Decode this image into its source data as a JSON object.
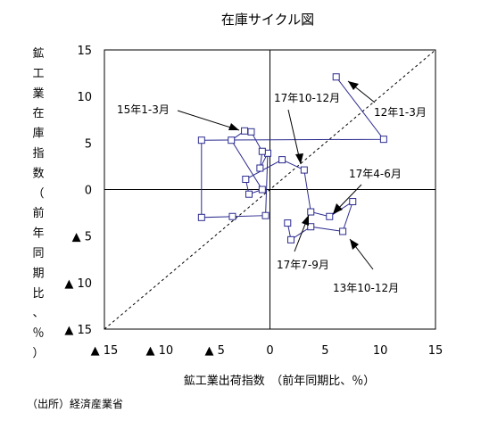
{
  "chart_data": {
    "type": "scatter",
    "title": "在庫サイクル図",
    "xlabel": "鉱工業出荷指数　（前年同期比、％）",
    "ylabel": "鉱工業在庫指数（前年同期比、％）",
    "xlim": [
      -15,
      15
    ],
    "ylim": [
      -15,
      15
    ],
    "x_ticks": [
      -15,
      -10,
      -5,
      0,
      5,
      10,
      15
    ],
    "x_tick_labels": [
      "▲ 15",
      "▲ 10",
      "▲ 5",
      "0",
      "5",
      "10",
      "15"
    ],
    "y_ticks": [
      15,
      10,
      5,
      0,
      -5,
      -10,
      -15
    ],
    "y_tick_labels": [
      "15",
      "10",
      "5",
      "0",
      "▲ 5",
      "▲ 10",
      "▲ 15"
    ],
    "grid": false,
    "reference_line": "45-degree dashed diagonal",
    "series": [
      {
        "points": [
          {
            "x": 6.0,
            "y": 12.1
          },
          {
            "x": 10.3,
            "y": 5.4
          },
          {
            "x": -6.2,
            "y": 5.3
          },
          {
            "x": -6.2,
            "y": -3.0
          },
          {
            "x": -3.4,
            "y": -2.9
          },
          {
            "x": -0.4,
            "y": -2.8
          },
          {
            "x": -0.2,
            "y": 3.9
          },
          {
            "x": -0.9,
            "y": 2.3
          },
          {
            "x": -0.7,
            "y": 4.1
          },
          {
            "x": -1.7,
            "y": 6.2
          },
          {
            "x": -2.3,
            "y": 6.3
          },
          {
            "x": -3.5,
            "y": 5.3
          },
          {
            "x": -0.7,
            "y": 0.0
          },
          {
            "x": -1.9,
            "y": -0.5
          },
          {
            "x": -2.2,
            "y": 1.1
          },
          {
            "x": 1.1,
            "y": 3.2
          },
          {
            "x": 3.1,
            "y": 2.1
          },
          {
            "x": 3.7,
            "y": -2.4
          },
          {
            "x": 5.4,
            "y": -2.9
          },
          {
            "x": 7.5,
            "y": -1.3
          },
          {
            "x": 6.6,
            "y": -4.5
          },
          {
            "x": 3.7,
            "y": -4.0
          },
          {
            "x": 1.9,
            "y": -5.4
          },
          {
            "x": 1.6,
            "y": -3.6
          }
        ]
      }
    ],
    "annotations": [
      {
        "text": "12年1-3月",
        "point_index": 0
      },
      {
        "text": "15年1-3月",
        "point_index": 9
      },
      {
        "text": "17年10-12月",
        "point_index": 16
      },
      {
        "text": "17年4-6月",
        "point_index": 18
      },
      {
        "text": "17年7-9月",
        "point_index": 17
      },
      {
        "text": "13年10-12月",
        "point_index": 20
      }
    ],
    "colors": {
      "series": "#2b2b8f",
      "frame": "#000000",
      "diagonal": "#000000"
    }
  },
  "source_note": "（出所）経済産業省"
}
